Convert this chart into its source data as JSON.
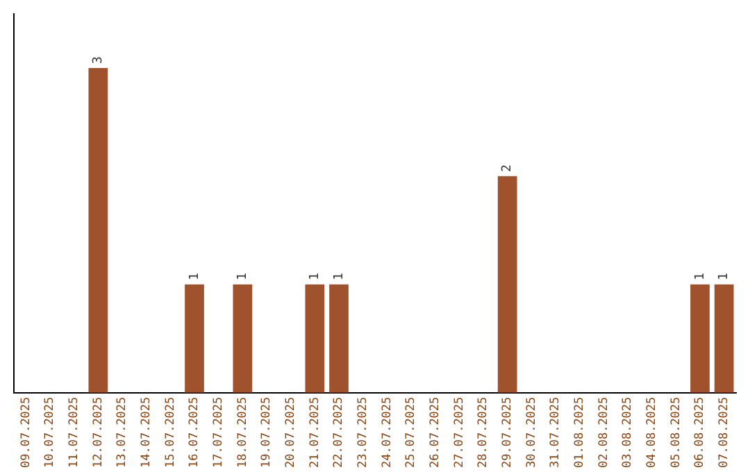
{
  "chart_data": {
    "type": "bar",
    "categories": [
      "09.07.2025",
      "10.07.2025",
      "11.07.2025",
      "12.07.2025",
      "13.07.2025",
      "14.07.2025",
      "15.07.2025",
      "16.07.2025",
      "17.07.2025",
      "18.07.2025",
      "19.07.2025",
      "20.07.2025",
      "21.07.2025",
      "22.07.2025",
      "23.07.2025",
      "24.07.2025",
      "25.07.2025",
      "26.07.2025",
      "27.07.2025",
      "28.07.2025",
      "29.07.2025",
      "30.07.2025",
      "31.07.2025",
      "01.08.2025",
      "02.08.2025",
      "03.08.2025",
      "04.08.2025",
      "05.08.2025",
      "06.08.2025",
      "07.08.2025"
    ],
    "values": [
      0,
      0,
      0,
      3,
      0,
      0,
      0,
      1,
      0,
      1,
      0,
      0,
      1,
      1,
      0,
      0,
      0,
      0,
      0,
      0,
      2,
      0,
      0,
      0,
      0,
      0,
      0,
      0,
      1,
      1
    ],
    "value_labels": [
      null,
      null,
      null,
      "3",
      null,
      null,
      null,
      "1",
      null,
      "1",
      null,
      null,
      "1",
      "1",
      null,
      null,
      null,
      null,
      null,
      null,
      "2",
      null,
      null,
      null,
      null,
      null,
      null,
      null,
      "1",
      "1"
    ],
    "color": "#a0522d",
    "grid": false,
    "legend": false
  }
}
